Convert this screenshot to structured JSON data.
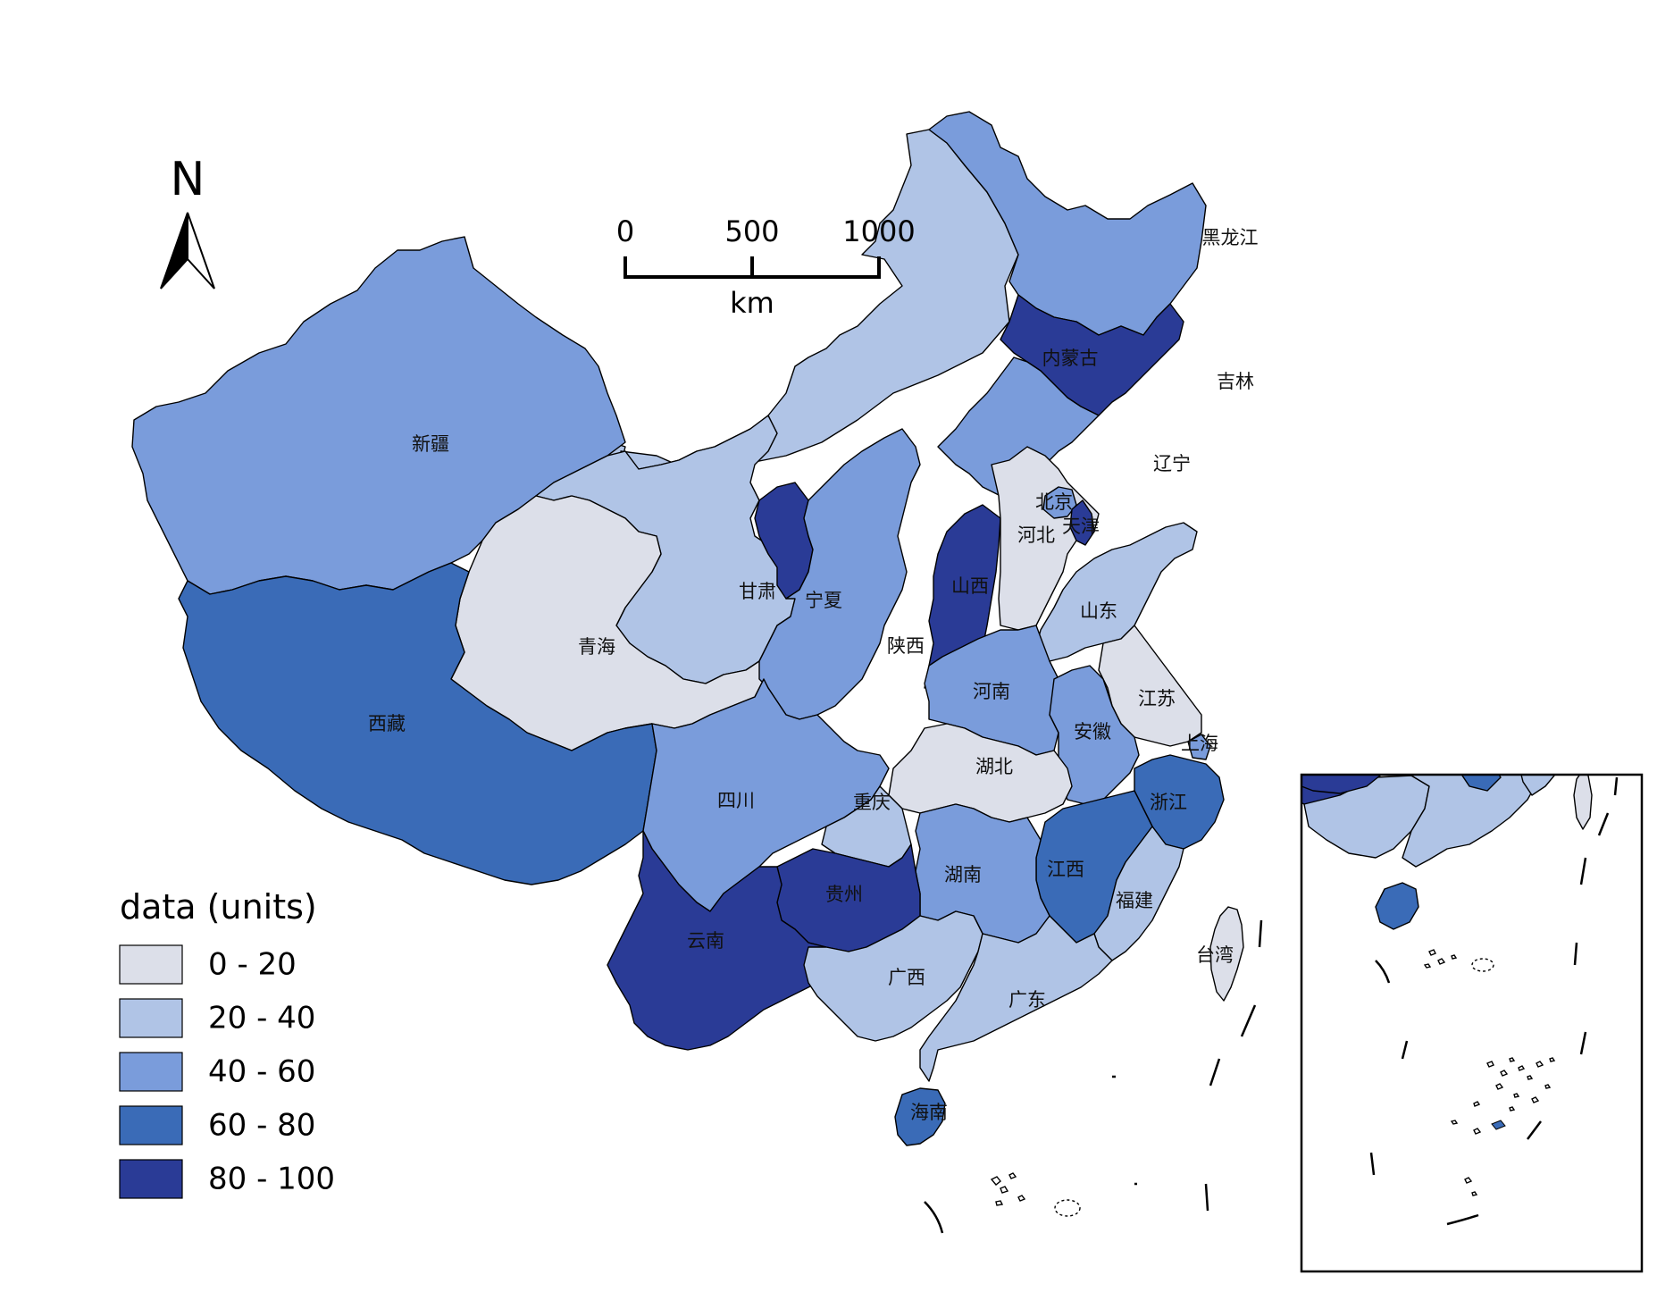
{
  "north_label": "N",
  "scale_bar": {
    "ticks": [
      "0",
      "500",
      "1000"
    ],
    "unit": "km"
  },
  "legend": {
    "title": "data (units)",
    "bins": [
      {
        "label": "0 - 20",
        "color": "#dcdfe9"
      },
      {
        "label": "20 - 40",
        "color": "#b0c4e6"
      },
      {
        "label": "40 - 60",
        "color": "#7a9cdb"
      },
      {
        "label": "60 - 80",
        "color": "#3a6bb7"
      },
      {
        "label": "80 - 100",
        "color": "#2a3b96"
      }
    ]
  },
  "provinces": [
    {
      "id": "heilongjiang",
      "name": "黑龙江",
      "bin": 2
    },
    {
      "id": "neimenggu",
      "name": "内蒙古",
      "bin": 1
    },
    {
      "id": "jilin",
      "name": "吉林",
      "bin": 4
    },
    {
      "id": "liaoning",
      "name": "辽宁",
      "bin": 2
    },
    {
      "id": "xinjiang",
      "name": "新疆",
      "bin": 2
    },
    {
      "id": "beijing",
      "name": "北京",
      "bin": 2
    },
    {
      "id": "tianjin",
      "name": "天津",
      "bin": 4
    },
    {
      "id": "hebei",
      "name": "河北",
      "bin": 0
    },
    {
      "id": "shanxi",
      "name": "山西",
      "bin": 4
    },
    {
      "id": "shandong",
      "name": "山东",
      "bin": 1
    },
    {
      "id": "gansu",
      "name": "甘肃",
      "bin": 1
    },
    {
      "id": "ningxia",
      "name": "宁夏",
      "bin": 4
    },
    {
      "id": "shaanxi",
      "name": "陕西",
      "bin": 2
    },
    {
      "id": "qinghai",
      "name": "青海",
      "bin": 0
    },
    {
      "id": "henan",
      "name": "河南",
      "bin": 2
    },
    {
      "id": "jiangsu",
      "name": "江苏",
      "bin": 0
    },
    {
      "id": "xizang",
      "name": "西藏",
      "bin": 3
    },
    {
      "id": "anhui",
      "name": "安徽",
      "bin": 2
    },
    {
      "id": "shanghai",
      "name": "上海",
      "bin": 2
    },
    {
      "id": "hubei",
      "name": "湖北",
      "bin": 0
    },
    {
      "id": "sichuan",
      "name": "四川",
      "bin": 2
    },
    {
      "id": "chongqing",
      "name": "重庆",
      "bin": 1
    },
    {
      "id": "zhejiang",
      "name": "浙江",
      "bin": 3
    },
    {
      "id": "jiangxi",
      "name": "江西",
      "bin": 3
    },
    {
      "id": "hunan",
      "name": "湖南",
      "bin": 2
    },
    {
      "id": "guizhou",
      "name": "贵州",
      "bin": 4
    },
    {
      "id": "fujian",
      "name": "福建",
      "bin": 1
    },
    {
      "id": "yunnan",
      "name": "云南",
      "bin": 4
    },
    {
      "id": "taiwan",
      "name": "台湾",
      "bin": 0
    },
    {
      "id": "guangxi",
      "name": "广西",
      "bin": 1
    },
    {
      "id": "guangdong",
      "name": "广东",
      "bin": 1
    },
    {
      "id": "hainan",
      "name": "海南",
      "bin": 3
    }
  ]
}
